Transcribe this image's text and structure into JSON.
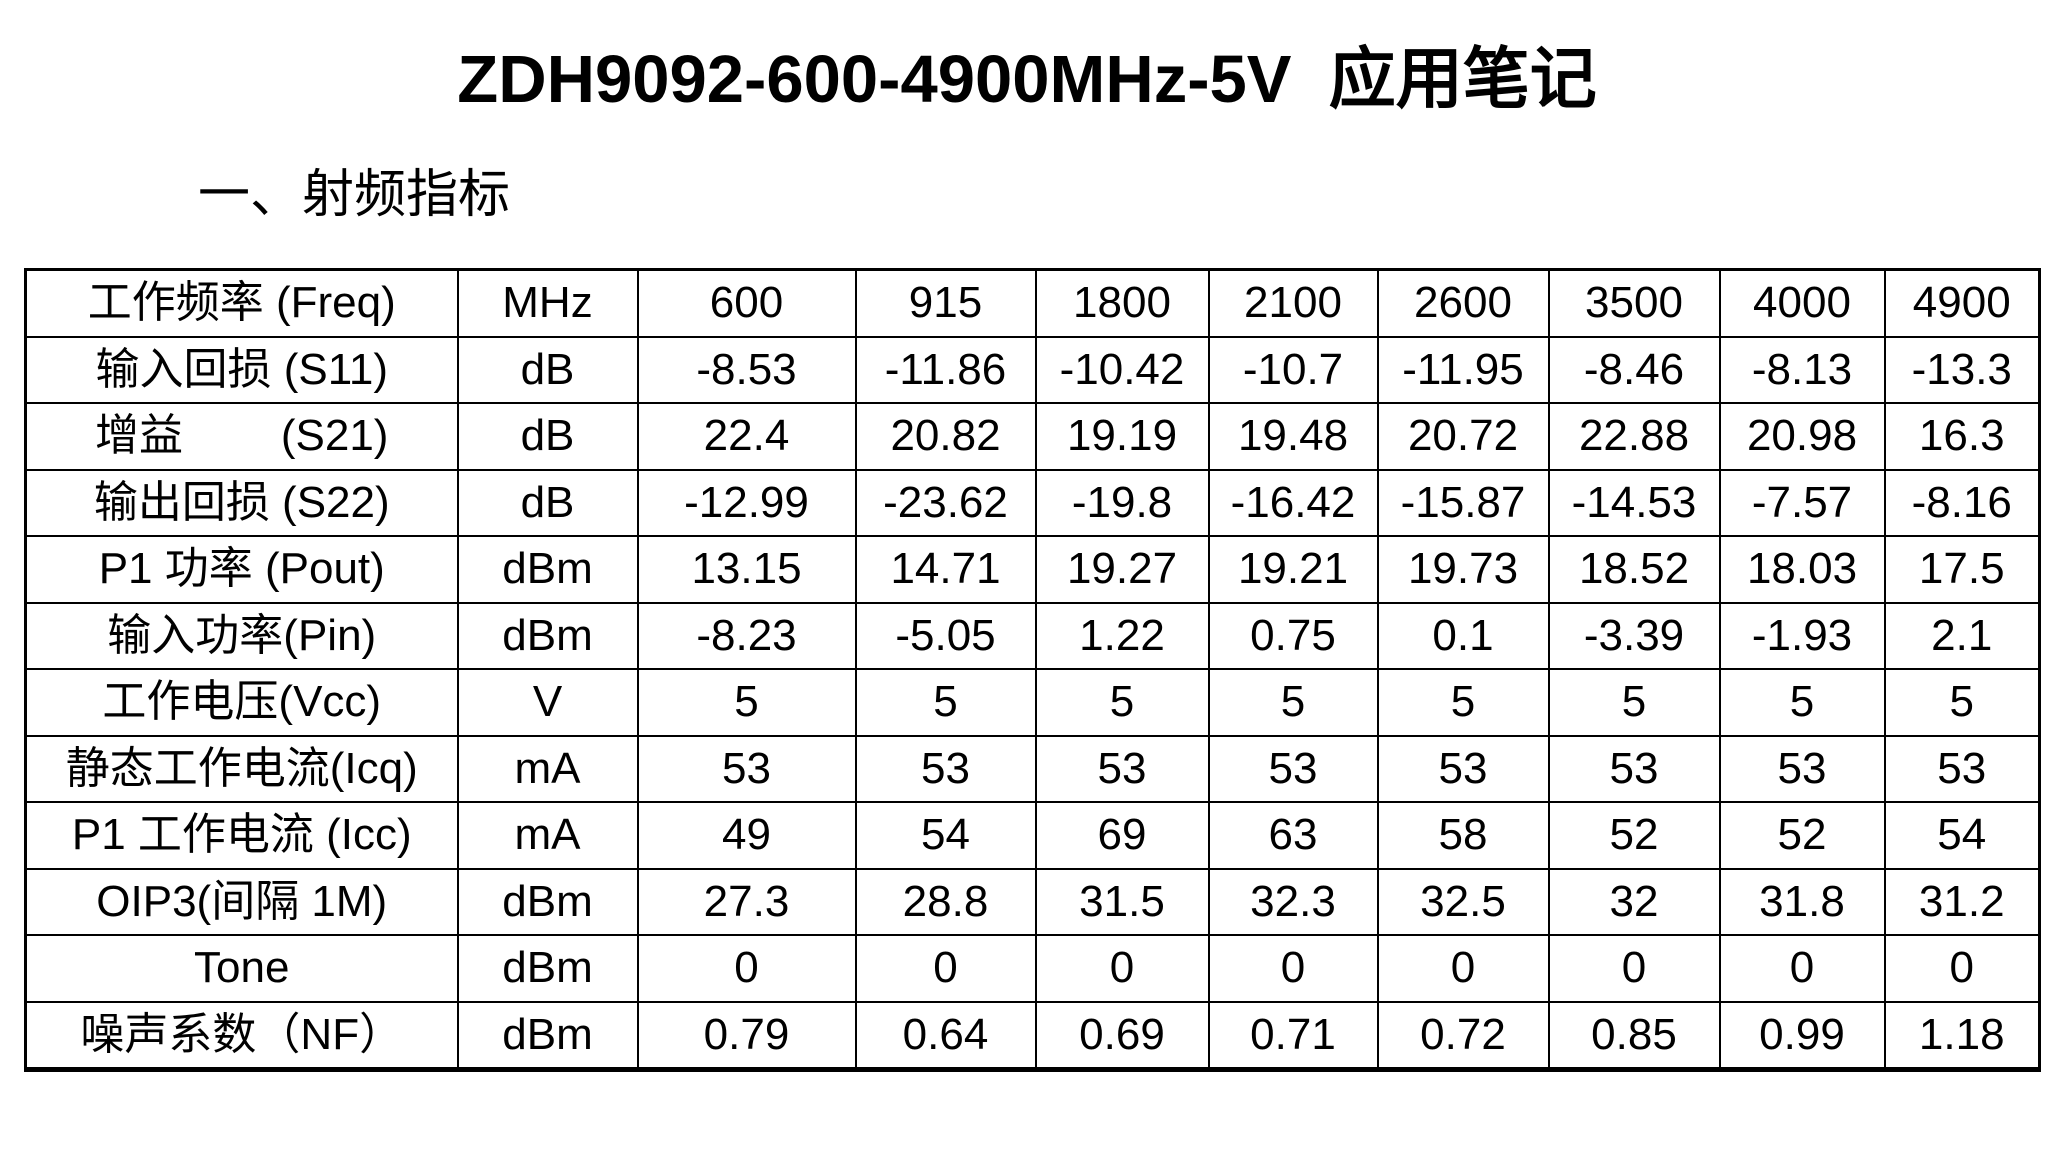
{
  "page": {
    "title": "ZDH9092-600-4900MHz-5V  应用笔记",
    "section_heading": "一、射频指标"
  },
  "colors": {
    "text": "#000000",
    "background": "#ffffff",
    "table_border": "#000000"
  },
  "table": {
    "frequency_header_label": "工作频率 (Freq)",
    "rows": [
      {
        "label": "工作频率 (Freq)",
        "unit": "MHz",
        "values": [
          "600",
          "915",
          "1800",
          "2100",
          "2600",
          "3500",
          "4000",
          "4900"
        ]
      },
      {
        "label": "输入回损 (S11)",
        "unit": "dB",
        "values": [
          "-8.53",
          "-11.86",
          "-10.42",
          "-10.7",
          "-11.95",
          "-8.46",
          "-8.13",
          "-13.3"
        ]
      },
      {
        "label": "增益        (S21)",
        "unit": "dB",
        "values": [
          "22.4",
          "20.82",
          "19.19",
          "19.48",
          "20.72",
          "22.88",
          "20.98",
          "16.3"
        ]
      },
      {
        "label": "输出回损 (S22)",
        "unit": "dB",
        "values": [
          "-12.99",
          "-23.62",
          "-19.8",
          "-16.42",
          "-15.87",
          "-14.53",
          "-7.57",
          "-8.16"
        ]
      },
      {
        "label": "P1 功率 (Pout)",
        "unit": "dBm",
        "values": [
          "13.15",
          "14.71",
          "19.27",
          "19.21",
          "19.73",
          "18.52",
          "18.03",
          "17.5"
        ]
      },
      {
        "label": "输入功率(Pin)",
        "unit": "dBm",
        "values": [
          "-8.23",
          "-5.05",
          "1.22",
          "0.75",
          "0.1",
          "-3.39",
          "-1.93",
          "2.1"
        ]
      },
      {
        "label": "工作电压(Vcc)",
        "unit": "V",
        "values": [
          "5",
          "5",
          "5",
          "5",
          "5",
          "5",
          "5",
          "5"
        ]
      },
      {
        "label": "静态工作电流(Icq)",
        "unit": "mA",
        "values": [
          "53",
          "53",
          "53",
          "53",
          "53",
          "53",
          "53",
          "53"
        ]
      },
      {
        "label": "P1 工作电流 (Icc)",
        "unit": "mA",
        "values": [
          "49",
          "54",
          "69",
          "63",
          "58",
          "52",
          "52",
          "54"
        ]
      },
      {
        "label": "OIP3(间隔 1M)",
        "unit": "dBm",
        "values": [
          "27.3",
          "28.8",
          "31.5",
          "32.3",
          "32.5",
          "32",
          "31.8",
          "31.2"
        ]
      },
      {
        "label": "Tone",
        "unit": "dBm",
        "values": [
          "0",
          "0",
          "0",
          "0",
          "0",
          "0",
          "0",
          "0"
        ]
      },
      {
        "label": "噪声系数（NF）",
        "unit": "dBm",
        "values": [
          "0.79",
          "0.64",
          "0.69",
          "0.71",
          "0.72",
          "0.85",
          "0.99",
          "1.18"
        ]
      }
    ]
  }
}
